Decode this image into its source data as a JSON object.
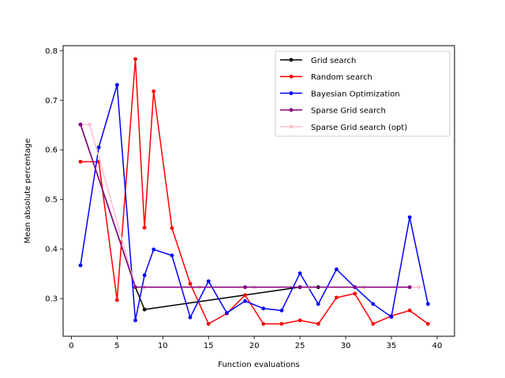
{
  "chart_data": {
    "type": "line",
    "title": "",
    "xlabel": "Function evaluations",
    "ylabel": "Mean absolute percentage",
    "xlim": [
      -0.9,
      41.9
    ],
    "ylim": [
      0.224,
      0.81
    ],
    "xticks": [
      0,
      5,
      10,
      15,
      20,
      25,
      30,
      35,
      40
    ],
    "yticks": [
      0.3,
      0.4,
      0.5,
      0.6,
      0.7,
      0.8
    ],
    "xtick_labels": [
      "0",
      "5",
      "10",
      "15",
      "20",
      "25",
      "30",
      "35",
      "40"
    ],
    "ytick_labels": [
      "0.3",
      "0.4",
      "0.5",
      "0.6",
      "0.7",
      "0.8"
    ],
    "grid": false,
    "legend_position": "top-right",
    "series": [
      {
        "name": "Grid search",
        "color": "#000000",
        "x": [
          1,
          7,
          8,
          25,
          27
        ],
        "y": [
          0.651,
          0.323,
          0.278,
          0.323,
          0.323
        ]
      },
      {
        "name": "Random search",
        "color": "#ff0000",
        "x": [
          1,
          3,
          5,
          7,
          8,
          9,
          11,
          13,
          15,
          17,
          19,
          21,
          23,
          25,
          27,
          29,
          31,
          33,
          35,
          37,
          39
        ],
        "y": [
          0.576,
          0.576,
          0.297,
          0.783,
          0.443,
          0.718,
          0.442,
          0.33,
          0.249,
          0.27,
          0.307,
          0.249,
          0.249,
          0.256,
          0.249,
          0.302,
          0.31,
          0.249,
          0.265,
          0.276,
          0.249
        ]
      },
      {
        "name": "Bayesian Optimization",
        "color": "#0000ff",
        "x": [
          1,
          3,
          5,
          7,
          8,
          9,
          11,
          13,
          15,
          17,
          19,
          21,
          23,
          25,
          27,
          29,
          31,
          33,
          35,
          37,
          39
        ],
        "y": [
          0.367,
          0.605,
          0.731,
          0.256,
          0.347,
          0.399,
          0.387,
          0.262,
          0.335,
          0.271,
          0.295,
          0.28,
          0.276,
          0.351,
          0.289,
          0.359,
          0.323,
          0.289,
          0.263,
          0.464,
          0.289
        ]
      },
      {
        "name": "Sparse Grid search",
        "color": "#800080",
        "x": [
          1,
          7,
          19,
          25,
          31,
          37
        ],
        "y": [
          0.651,
          0.323,
          0.323,
          0.323,
          0.323,
          0.323
        ]
      },
      {
        "name": "Sparse Grid search (opt)",
        "color": "#ffc0cb",
        "x": [
          1,
          2,
          7,
          8,
          14,
          20,
          26,
          32,
          38
        ],
        "y": [
          0.651,
          0.651,
          0.323,
          0.323,
          0.323,
          0.323,
          0.323,
          0.323,
          0.323
        ]
      }
    ]
  }
}
